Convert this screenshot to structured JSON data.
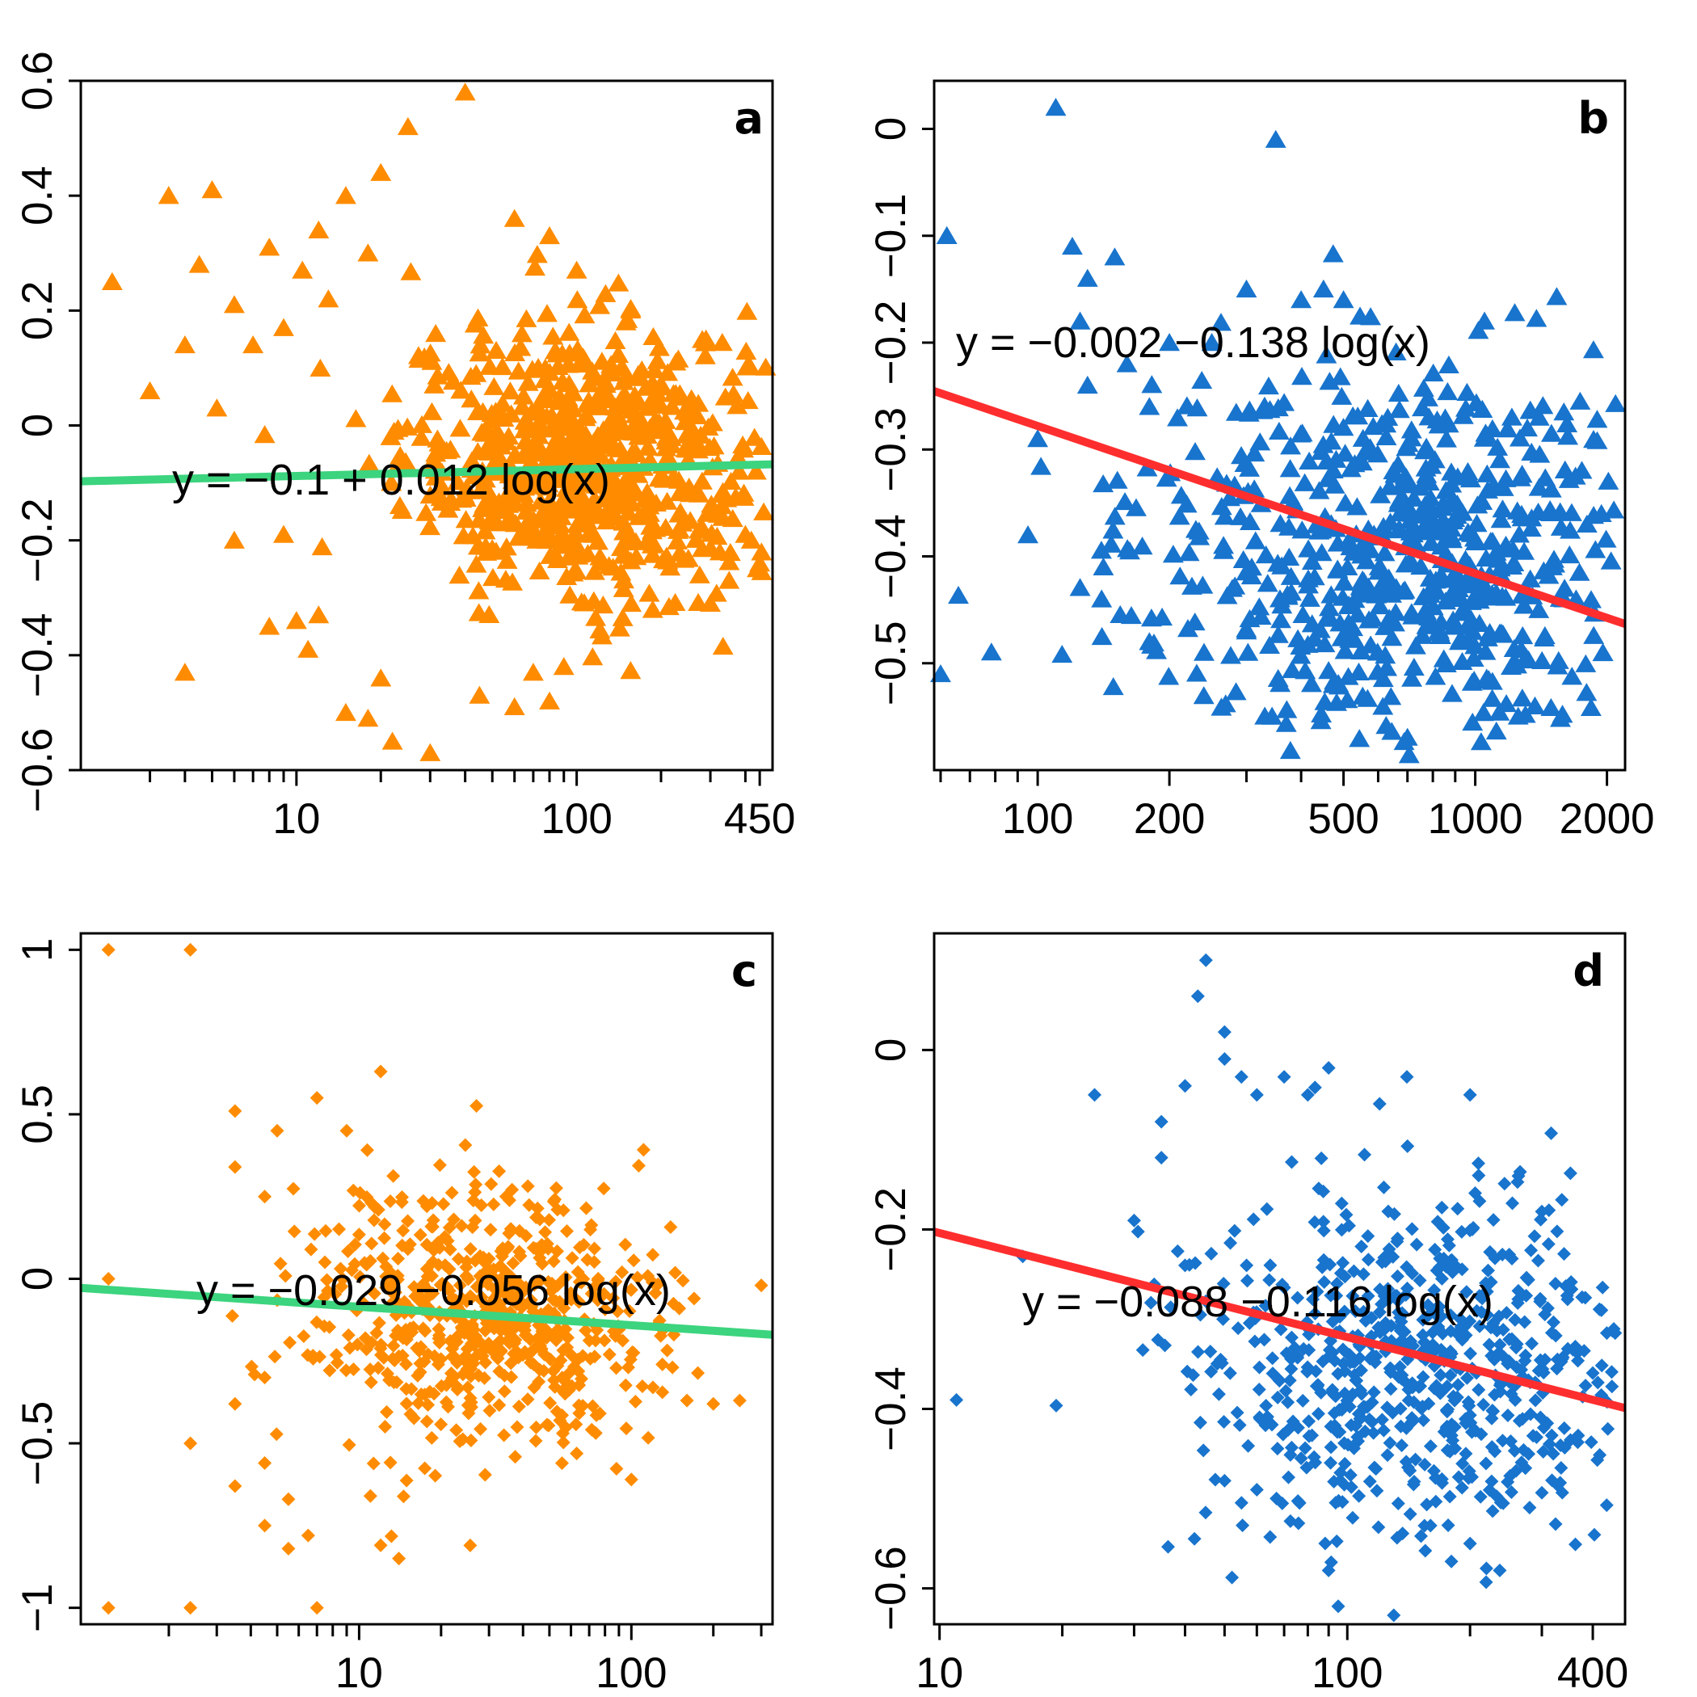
{
  "colors": {
    "orange": "#ff8c00",
    "blue": "#1874cd",
    "green": "#3cd47e",
    "red": "#ff2e2e",
    "axis": "#000000"
  },
  "chart_data": [
    {
      "id": "a",
      "type": "scatter",
      "panel_label": "a",
      "marker": "triangle",
      "color": "orange",
      "x_scale": "log",
      "xlim": [
        1.7,
        500
      ],
      "ylim": [
        -0.6,
        0.6
      ],
      "x_ticks": [
        10,
        100,
        450
      ],
      "x_tick_labels": [
        "10",
        "100",
        "450"
      ],
      "x_minor_ticks": [
        3,
        4,
        5,
        6,
        7,
        8,
        9,
        20,
        30,
        40,
        50,
        60,
        70,
        80,
        90,
        200,
        300,
        400
      ],
      "y_ticks": [
        -0.6,
        -0.4,
        -0.2,
        0,
        0.2,
        0.4,
        0.6
      ],
      "y_tick_labels": [
        "−0.6",
        "−0.4",
        "−0.2",
        "0",
        "0.2",
        "0.4",
        "0.6"
      ],
      "fit": {
        "intercept": -0.1,
        "slope": 0.012,
        "color": "green"
      },
      "equation": "y =  −0.1  +  0.012 log(x)",
      "cluster": {
        "x_center": 110,
        "x_spread": 0.33,
        "y_center": -0.06,
        "y_spread": 0.12,
        "count": 700
      },
      "points": [
        [
          2.2,
          0.25
        ],
        [
          3.5,
          0.4
        ],
        [
          5.0,
          0.41
        ],
        [
          3.0,
          0.06
        ],
        [
          4.0,
          0.14
        ],
        [
          4.5,
          0.28
        ],
        [
          5.2,
          0.03
        ],
        [
          6.0,
          0.21
        ],
        [
          7.0,
          0.14
        ],
        [
          8.0,
          0.31
        ],
        [
          9.0,
          0.17
        ],
        [
          10.5,
          0.27
        ],
        [
          12.0,
          0.34
        ],
        [
          13.0,
          0.22
        ],
        [
          15.0,
          0.4
        ],
        [
          18.0,
          0.3
        ],
        [
          20.0,
          0.44
        ],
        [
          25.0,
          0.52
        ],
        [
          40.0,
          0.58
        ],
        [
          60.0,
          0.36
        ],
        [
          80.0,
          0.33
        ],
        [
          100.0,
          0.27
        ],
        [
          150.0,
          0.18
        ],
        [
          4.0,
          -0.43
        ],
        [
          8.0,
          -0.35
        ],
        [
          10.0,
          -0.34
        ],
        [
          11.0,
          -0.39
        ],
        [
          12.0,
          -0.33
        ],
        [
          15.0,
          -0.5
        ],
        [
          18.0,
          -0.51
        ],
        [
          20.0,
          -0.44
        ],
        [
          22.0,
          -0.55
        ],
        [
          30.0,
          -0.57
        ],
        [
          45.0,
          -0.47
        ],
        [
          60.0,
          -0.49
        ],
        [
          70.0,
          -0.43
        ],
        [
          80.0,
          -0.48
        ],
        [
          90.0,
          -0.42
        ],
        [
          300.0,
          -0.31
        ],
        [
          350.0,
          -0.27
        ],
        [
          400.0,
          -0.19
        ],
        [
          450.0,
          -0.24
        ],
        [
          420.0,
          -0.2
        ],
        [
          380.0,
          -0.08
        ],
        [
          330.0,
          -0.14
        ],
        [
          250.0,
          -0.06
        ],
        [
          9.0,
          -0.19
        ],
        [
          6.0,
          -0.2
        ]
      ]
    },
    {
      "id": "b",
      "type": "scatter",
      "panel_label": "b",
      "marker": "triangle",
      "color": "blue",
      "x_scale": "log",
      "xlim": [
        58,
        2200
      ],
      "ylim": [
        -0.6,
        0.045
      ],
      "x_ticks": [
        100,
        200,
        500,
        1000,
        2000
      ],
      "x_tick_labels": [
        "100",
        "200",
        "500",
        "1000",
        "2000"
      ],
      "x_minor_ticks": [
        60,
        70,
        80,
        90,
        300,
        400,
        600,
        700,
        800,
        900
      ],
      "y_ticks": [
        -0.5,
        -0.4,
        -0.3,
        -0.2,
        -0.1,
        0
      ],
      "y_tick_labels": [
        "−0.5",
        "−0.4",
        "−0.3",
        "−0.2",
        "−0.1",
        "0"
      ],
      "fit": {
        "intercept": -0.002,
        "slope": -0.138,
        "color": "red"
      },
      "equation": "y =  −0.002 −0.138 log(x)",
      "cluster": {
        "x_center": 650,
        "x_spread": 0.3,
        "y_center": -0.4,
        "y_spread": 0.09,
        "count": 650
      },
      "points": [
        [
          62,
          -0.1
        ],
        [
          60,
          -0.51
        ],
        [
          110,
          0.02
        ],
        [
          350,
          -0.01
        ],
        [
          120,
          -0.11
        ],
        [
          125,
          -0.18
        ],
        [
          130,
          -0.14
        ],
        [
          150,
          -0.12
        ],
        [
          160,
          -0.22
        ],
        [
          200,
          -0.2
        ],
        [
          300,
          -0.15
        ],
        [
          400,
          -0.16
        ],
        [
          450,
          -0.15
        ],
        [
          500,
          -0.16
        ],
        [
          100,
          -0.29
        ],
        [
          130,
          -0.24
        ],
        [
          180,
          -0.26
        ],
        [
          250,
          -0.2
        ],
        [
          95,
          -0.38
        ],
        [
          140,
          -0.44
        ],
        [
          180,
          -0.48
        ],
        [
          240,
          -0.49
        ],
        [
          1400,
          -0.27
        ],
        [
          1800,
          -0.37
        ],
        [
          1050,
          -0.18
        ],
        [
          1500,
          -0.41
        ],
        [
          1600,
          -0.43
        ],
        [
          1700,
          -0.44
        ],
        [
          300,
          -0.47
        ]
      ]
    },
    {
      "id": "c",
      "type": "scatter",
      "panel_label": "c",
      "marker": "diamond",
      "color": "orange",
      "x_scale": "log",
      "xlim": [
        0.95,
        330
      ],
      "ylim": [
        -1.05,
        1.05
      ],
      "x_ticks": [
        10,
        100
      ],
      "x_tick_labels": [
        "10",
        "100"
      ],
      "x_minor_ticks": [
        2,
        3,
        4,
        5,
        6,
        7,
        8,
        9,
        20,
        30,
        40,
        50,
        60,
        70,
        80,
        90,
        200,
        300
      ],
      "y_ticks": [
        -1,
        -0.5,
        0,
        0.5,
        1
      ],
      "y_tick_labels": [
        "−1",
        "−0.5",
        "0",
        "0.5",
        "1"
      ],
      "fit": {
        "intercept": -0.029,
        "slope": -0.056,
        "color": "green"
      },
      "equation": "y =  −0.029 −0.056 log(x)",
      "cluster": {
        "x_center": 28,
        "x_spread": 0.32,
        "y_center": -0.12,
        "y_spread": 0.2,
        "count": 650
      },
      "points": [
        [
          1.2,
          1.0
        ],
        [
          2.4,
          1.0
        ],
        [
          1.2,
          0.0
        ],
        [
          1.2,
          -1.0
        ],
        [
          2.4,
          -1.0
        ],
        [
          7.0,
          -1.0
        ],
        [
          2.4,
          -0.5
        ],
        [
          12.0,
          0.63
        ],
        [
          3.5,
          0.51
        ],
        [
          5.0,
          0.45
        ],
        [
          7.0,
          0.55
        ],
        [
          9.0,
          0.45
        ],
        [
          3.5,
          0.34
        ],
        [
          4.5,
          0.25
        ],
        [
          3.5,
          -0.38
        ],
        [
          4.5,
          -0.3
        ],
        [
          3.5,
          -0.63
        ],
        [
          4.5,
          -0.56
        ],
        [
          5.5,
          -0.67
        ],
        [
          4.5,
          -0.75
        ],
        [
          5.5,
          -0.82
        ],
        [
          6.5,
          -0.78
        ],
        [
          12.0,
          -0.81
        ],
        [
          14.0,
          -0.85
        ],
        [
          11.0,
          -0.66
        ],
        [
          100.0,
          -0.61
        ],
        [
          200.0,
          -0.38
        ],
        [
          250.0,
          -0.37
        ],
        [
          160.0,
          -0.37
        ],
        [
          130.0,
          -0.26
        ],
        [
          150.0,
          -0.09
        ],
        [
          170.0,
          -0.06
        ],
        [
          300.0,
          -0.02
        ],
        [
          120.0,
          -0.33
        ]
      ]
    },
    {
      "id": "d",
      "type": "scatter",
      "panel_label": "d",
      "marker": "diamond",
      "color": "blue",
      "x_scale": "log",
      "xlim": [
        9.7,
        480
      ],
      "ylim": [
        -0.64,
        0.13
      ],
      "x_ticks": [
        10,
        100,
        400
      ],
      "x_tick_labels": [
        "10",
        "100",
        "400"
      ],
      "x_minor_ticks": [
        20,
        30,
        40,
        50,
        60,
        70,
        80,
        90,
        200,
        300
      ],
      "y_ticks": [
        -0.6,
        -0.4,
        -0.2,
        0
      ],
      "y_tick_labels": [
        "−0.6",
        "−0.4",
        "−0.2",
        "0"
      ],
      "fit": {
        "intercept": -0.088,
        "slope": -0.116,
        "color": "red"
      },
      "equation": "y =  −0.088 −0.116 log(x)",
      "cluster": {
        "x_center": 150,
        "x_spread": 0.28,
        "y_center": -0.36,
        "y_spread": 0.1,
        "count": 700
      },
      "points": [
        [
          11,
          -0.39
        ],
        [
          16,
          -0.23
        ],
        [
          24,
          -0.05
        ],
        [
          35,
          -0.08
        ],
        [
          40,
          -0.04
        ],
        [
          45,
          0.1
        ],
        [
          43,
          0.06
        ],
        [
          50,
          0.02
        ],
        [
          50,
          -0.01
        ],
        [
          55,
          -0.03
        ],
        [
          60,
          -0.05
        ],
        [
          70,
          -0.03
        ],
        [
          80,
          -0.05
        ],
        [
          90,
          -0.02
        ],
        [
          140,
          -0.03
        ],
        [
          120,
          -0.06
        ],
        [
          200,
          -0.05
        ],
        [
          35,
          -0.12
        ],
        [
          30,
          -0.19
        ],
        [
          40,
          -0.24
        ],
        [
          45,
          -0.28
        ],
        [
          95,
          -0.62
        ],
        [
          130,
          -0.63
        ],
        [
          160,
          -0.53
        ],
        [
          180,
          -0.57
        ],
        [
          200,
          -0.55
        ],
        [
          90,
          -0.58
        ],
        [
          300,
          -0.18
        ],
        [
          400,
          -0.36
        ],
        [
          420,
          -0.29
        ],
        [
          280,
          -0.51
        ],
        [
          320,
          -0.45
        ],
        [
          50,
          -0.48
        ],
        [
          60,
          -0.49
        ]
      ]
    }
  ]
}
